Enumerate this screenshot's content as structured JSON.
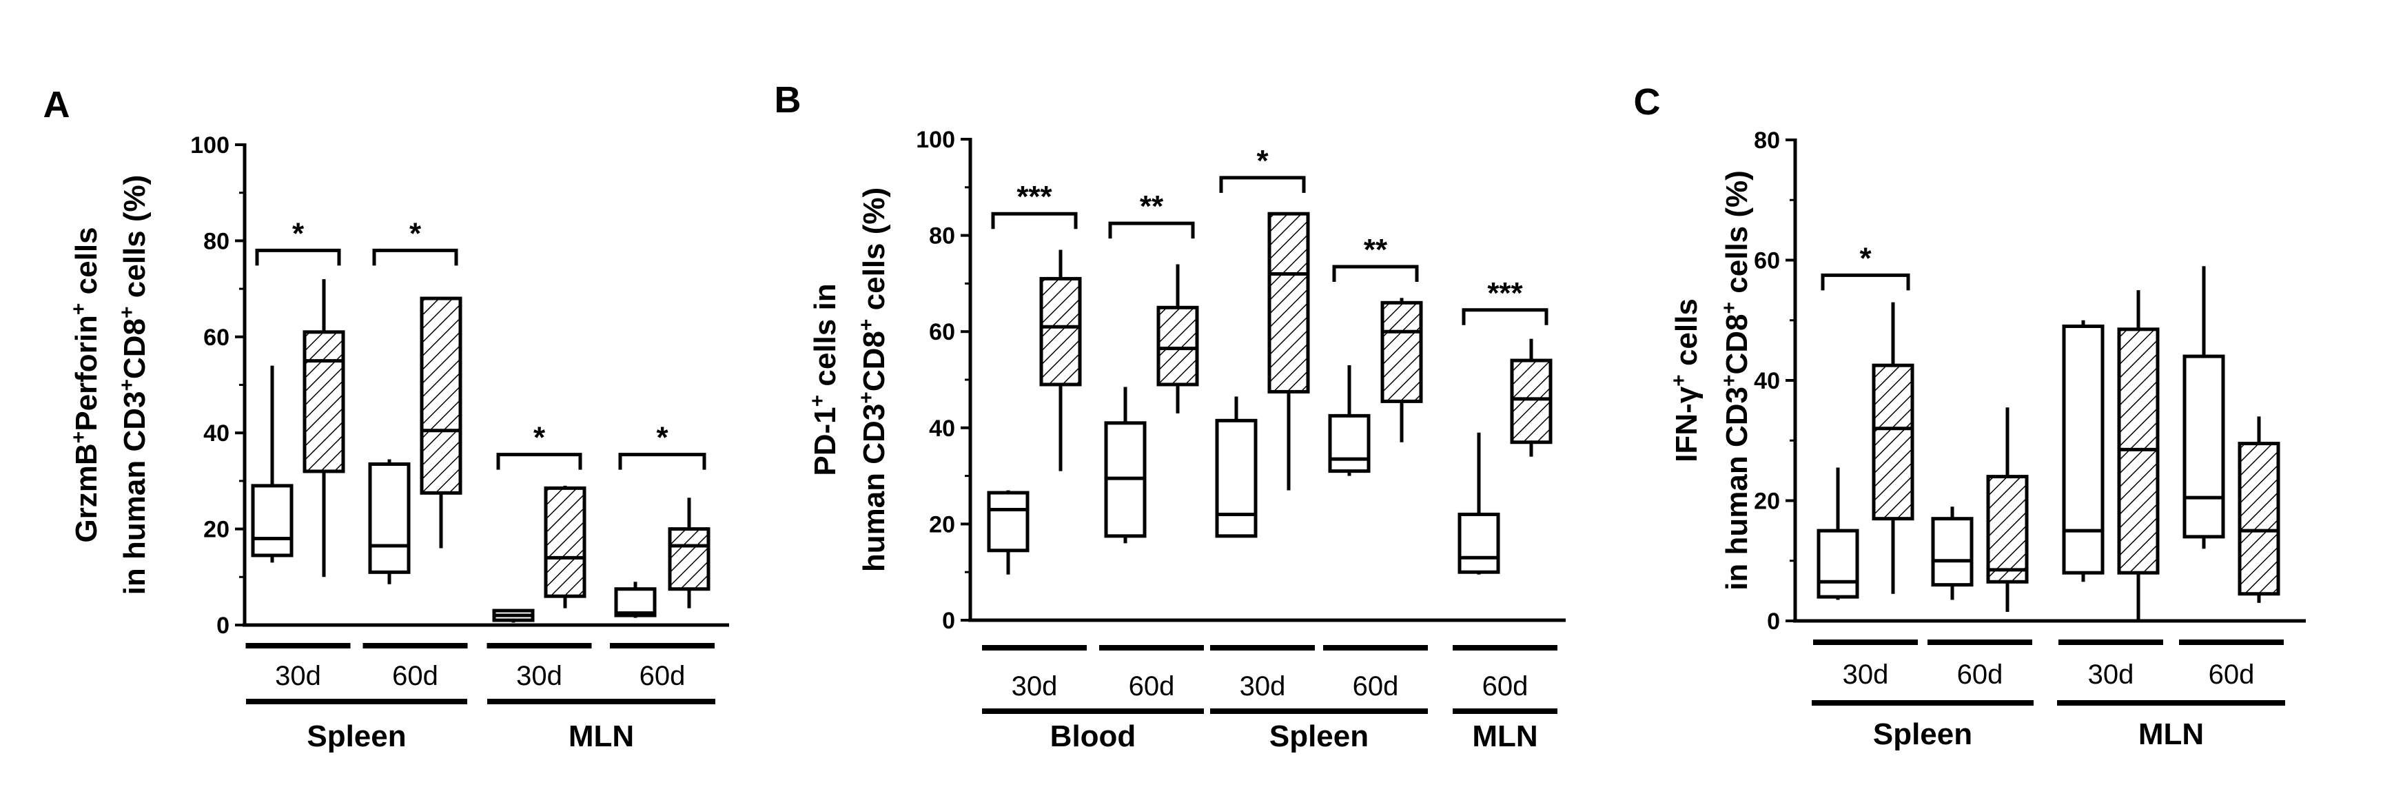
{
  "chart_data": [
    {
      "type": "box",
      "panel": "A",
      "ylabel": [
        "GrzmB",
        "+",
        "Perforin",
        "+",
        " cells",
        "in human CD3",
        "+",
        "CD8",
        "+",
        " cells (%)"
      ],
      "ylim": [
        0,
        100
      ],
      "yticks": [
        "0",
        "20",
        "40",
        "60",
        "80",
        "100"
      ],
      "subgroups": [
        "30d",
        "60d",
        "30d",
        "60d"
      ],
      "groups": [
        {
          "label": "Spleen",
          "span": [
            0,
            1
          ]
        },
        {
          "label": "MLN",
          "span": [
            2,
            3
          ]
        }
      ],
      "pairs": [
        {
          "sig": "*",
          "control": {
            "min": 13,
            "q1": 14.5,
            "median": 18,
            "q3": 29,
            "max": 54
          },
          "treated": {
            "min": 10,
            "q1": 32,
            "median": 55,
            "q3": 61,
            "max": 72
          }
        },
        {
          "sig": "*",
          "control": {
            "min": 8.5,
            "q1": 11,
            "median": 16.5,
            "q3": 33.5,
            "max": 34.5
          },
          "treated": {
            "min": 16,
            "q1": 27.5,
            "median": 40.5,
            "q3": 68,
            "max": 68
          }
        },
        {
          "sig": "*",
          "control": {
            "min": 0.5,
            "q1": 1,
            "median": 2,
            "q3": 3,
            "max": 3
          },
          "treated": {
            "min": 3.5,
            "q1": 6,
            "median": 14,
            "q3": 28.5,
            "max": 29
          }
        },
        {
          "sig": "*",
          "control": {
            "min": 1.5,
            "q1": 2,
            "median": 2.5,
            "q3": 7.5,
            "max": 9
          },
          "treated": {
            "min": 3.5,
            "q1": 7.5,
            "median": 16.5,
            "q3": 20,
            "max": 26.5
          }
        }
      ]
    },
    {
      "type": "box",
      "panel": "B",
      "ylabel": [
        "PD-1",
        "+",
        " cells in",
        "human CD3",
        "+",
        "CD8",
        "+",
        " cells (%)"
      ],
      "ylim": [
        0,
        100
      ],
      "yticks": [
        "0",
        "20",
        "40",
        "60",
        "80",
        "100"
      ],
      "subgroups": [
        "30d",
        "60d",
        "30d",
        "60d",
        "60d"
      ],
      "groups": [
        {
          "label": "Blood",
          "span": [
            0,
            1
          ]
        },
        {
          "label": "Spleen",
          "span": [
            2,
            3
          ]
        },
        {
          "label": "MLN",
          "span": [
            4,
            4
          ]
        }
      ],
      "pairs": [
        {
          "sig": "***",
          "control": {
            "min": 9.5,
            "q1": 14.5,
            "median": 23,
            "q3": 26.5,
            "max": 27
          },
          "treated": {
            "min": 31,
            "q1": 49,
            "median": 61,
            "q3": 71,
            "max": 77
          }
        },
        {
          "sig": "**",
          "control": {
            "min": 16,
            "q1": 17.5,
            "median": 29.5,
            "q3": 41,
            "max": 48.5
          },
          "treated": {
            "min": 43,
            "q1": 49,
            "median": 56.5,
            "q3": 65,
            "max": 74
          }
        },
        {
          "sig": "*",
          "control": {
            "min": 17.5,
            "q1": 17.5,
            "median": 22,
            "q3": 41.5,
            "max": 46.5
          },
          "treated": {
            "min": 27,
            "q1": 47.5,
            "median": 72,
            "q3": 84.5,
            "max": 84.5
          }
        },
        {
          "sig": "**",
          "control": {
            "min": 30,
            "q1": 31,
            "median": 33.5,
            "q3": 42.5,
            "max": 53
          },
          "treated": {
            "min": 37,
            "q1": 45.5,
            "median": 60,
            "q3": 66,
            "max": 67
          }
        },
        {
          "sig": "***",
          "control": {
            "min": 9.5,
            "q1": 10,
            "median": 13,
            "q3": 22,
            "max": 39
          },
          "treated": {
            "min": 34,
            "q1": 37,
            "median": 46,
            "q3": 54,
            "max": 58.5
          }
        }
      ]
    },
    {
      "type": "box",
      "panel": "C",
      "ylabel": [
        "IFN-γ",
        "+",
        " cells",
        "in human CD3",
        "+",
        "CD8",
        "+",
        " cells (%)"
      ],
      "ylim": [
        0,
        80
      ],
      "yticks": [
        "0",
        "20",
        "40",
        "60",
        "80"
      ],
      "subgroups": [
        "30d",
        "60d",
        "30d",
        "60d"
      ],
      "groups": [
        {
          "label": "Spleen",
          "span": [
            0,
            1
          ]
        },
        {
          "label": "MLN",
          "span": [
            2,
            3
          ]
        }
      ],
      "pairs": [
        {
          "sig": "*",
          "control": {
            "min": 3.5,
            "q1": 4,
            "median": 6.5,
            "q3": 15,
            "max": 25.5
          },
          "treated": {
            "min": 4.5,
            "q1": 17,
            "median": 32,
            "q3": 42.5,
            "max": 53
          }
        },
        {
          "sig": "",
          "control": {
            "min": 3.5,
            "q1": 6,
            "median": 10,
            "q3": 17,
            "max": 19
          },
          "treated": {
            "min": 1.5,
            "q1": 6.5,
            "median": 8.5,
            "q3": 24,
            "max": 35.5
          }
        },
        {
          "sig": "",
          "control": {
            "min": 6.5,
            "q1": 8,
            "median": 15,
            "q3": 49,
            "max": 50
          },
          "treated": {
            "min": 0,
            "q1": 8,
            "median": 28.5,
            "q3": 48.5,
            "max": 55
          }
        },
        {
          "sig": "",
          "control": {
            "min": 12,
            "q1": 14,
            "median": 20.5,
            "q3": 44,
            "max": 59
          },
          "treated": {
            "min": 3,
            "q1": 4.5,
            "median": 15,
            "q3": 29.5,
            "max": 34
          }
        }
      ]
    }
  ]
}
